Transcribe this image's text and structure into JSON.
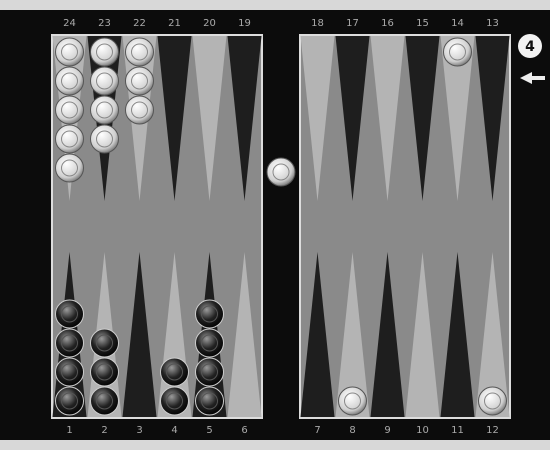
{
  "board": {
    "top_labels": [
      "24",
      "23",
      "22",
      "21",
      "20",
      "19",
      "18",
      "17",
      "16",
      "15",
      "14",
      "13"
    ],
    "bottom_labels": [
      "1",
      "2",
      "3",
      "4",
      "5",
      "6",
      "7",
      "8",
      "9",
      "10",
      "11",
      "12"
    ],
    "cube": "4",
    "top": {
      "counts": [
        5,
        4,
        3,
        0,
        0,
        0,
        0,
        0,
        0,
        0,
        1,
        0
      ],
      "colors": [
        "white",
        "white",
        "white",
        "white",
        "white",
        "white",
        "white",
        "white",
        "white",
        "white",
        "white",
        "white"
      ]
    },
    "bottom": {
      "counts": [
        4,
        3,
        0,
        2,
        4,
        0,
        0,
        1,
        0,
        0,
        0,
        1
      ],
      "colors": [
        "black",
        "black",
        "black",
        "black",
        "black",
        "black",
        "white",
        "white",
        "white",
        "white",
        "white",
        "white"
      ]
    },
    "bar": {
      "counts": [
        1
      ],
      "colors": [
        "white"
      ]
    }
  }
}
